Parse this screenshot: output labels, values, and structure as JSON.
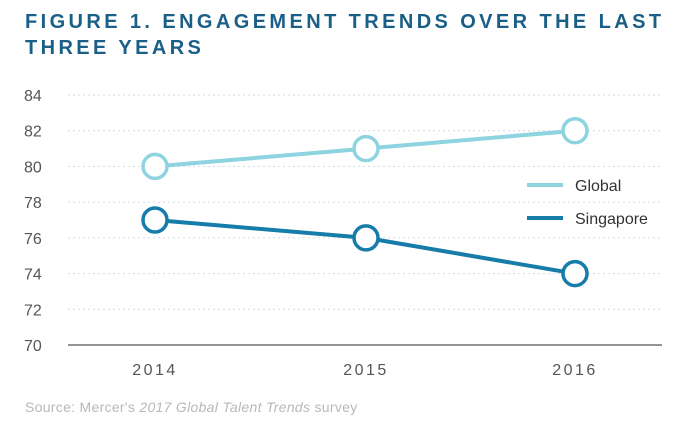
{
  "title_line1": "FIGURE 1. ENGAGEMENT TRENDS OVER THE LAST",
  "title_line2": "THREE YEARS",
  "source": {
    "prefix": "Source: Mercer's ",
    "italic": "2017 Global Talent Trends",
    "suffix": " survey"
  },
  "colors": {
    "global": "#8dd3e0",
    "singapore": "#167ca9",
    "grid": "#d6dadd",
    "axis": "#555555",
    "tick": "#555555"
  },
  "chart_data": {
    "type": "line",
    "title": "FIGURE 1. ENGAGEMENT TRENDS OVER THE LAST THREE YEARS",
    "xlabel": "",
    "ylabel": "",
    "categories": [
      "2014",
      "2015",
      "2016"
    ],
    "y_ticks": [
      "84",
      "82",
      "80",
      "78",
      "76",
      "74",
      "72",
      "70"
    ],
    "ylim": [
      70,
      84
    ],
    "grid": true,
    "legend_position": "right",
    "series": [
      {
        "name": "Global",
        "values": [
          80,
          81,
          82
        ]
      },
      {
        "name": "Singapore",
        "values": [
          77,
          76,
          74
        ]
      }
    ]
  }
}
